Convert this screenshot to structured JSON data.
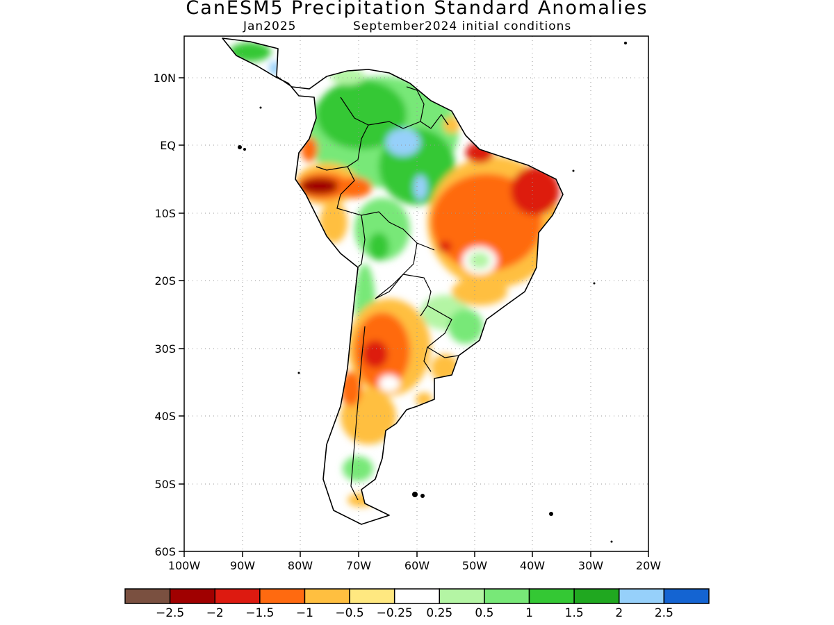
{
  "title": "CanESM5 Precipitation Standard Anomalies",
  "subtitle_left": "Jan2025",
  "subtitle_right": "September2024 initial conditions",
  "lat_labels": [
    "10N",
    "EQ",
    "10S",
    "20S",
    "30S",
    "40S",
    "50S",
    "60S"
  ],
  "lon_labels": [
    "100W",
    "90W",
    "80W",
    "70W",
    "60W",
    "50W",
    "40W",
    "30W",
    "20W"
  ],
  "colorbar": {
    "colors": [
      "#7a5040",
      "#a00000",
      "#dd1a10",
      "#ff6a10",
      "#ffbf40",
      "#ffe880",
      "#ffffff",
      "#b4f5a4",
      "#78e878",
      "#34c834",
      "#20a820",
      "#96d0fa",
      "#1464d2"
    ],
    "labels": [
      "−2.5",
      "−2",
      "−1.5",
      "−1",
      "−0.5",
      "−0.25",
      "0.25",
      "0.5",
      "1",
      "1.5",
      "2",
      "2.5"
    ]
  },
  "map_extent": {
    "lon_range": [
      "100W",
      "20W"
    ],
    "lat_range": [
      "60S",
      "15N"
    ],
    "grid": true
  }
}
